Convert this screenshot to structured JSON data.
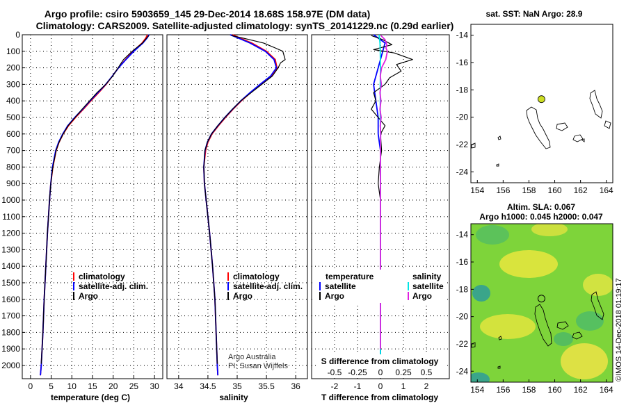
{
  "title_line1": "Argo profile: csiro 5903659_145 29-Dec-2014 18.68S 158.97E (DM data)",
  "title_line2": "Climatology: CARS2009. Satellite-adjusted climatology: synTS_20141229.nc (0.29d earlier)",
  "credit": "©IMOS 14-Dec-2018 01:19:17",
  "colors": {
    "climatology": "#ff0000",
    "satellite": "#0000ff",
    "argo": "#000000",
    "sat_salinity": "#00e5e5",
    "argo_salinity": "#e020e0",
    "float_marker": "#ccdd22"
  },
  "chart_data": [
    {
      "id": "temperature",
      "type": "line",
      "xlabel": "temperature (deg C)",
      "ylabel": "",
      "xlim": [
        -2,
        32
      ],
      "ylim": [
        0,
        2080
      ],
      "xticks": [
        0,
        5,
        10,
        15,
        20,
        25,
        30
      ],
      "yticks": [
        0,
        100,
        200,
        300,
        400,
        500,
        600,
        700,
        800,
        900,
        1000,
        1100,
        1200,
        1300,
        1400,
        1500,
        1600,
        1700,
        1800,
        1900,
        2000
      ],
      "legend": [
        "climatology",
        "satellite-adj. clim.",
        "Argo"
      ],
      "series": [
        {
          "name": "climatology",
          "color": "#ff0000",
          "depth": [
            0,
            20,
            50,
            100,
            150,
            200,
            250,
            300,
            350,
            400,
            450,
            500,
            550,
            600,
            650,
            700,
            800,
            900,
            1000,
            1200,
            1400,
            1600,
            1800,
            2000,
            2060
          ],
          "values": [
            28.3,
            27.9,
            27.0,
            24.8,
            23.0,
            21.3,
            19.8,
            18.3,
            16.5,
            14.6,
            12.8,
            10.9,
            9.2,
            7.9,
            6.9,
            6.2,
            5.4,
            4.9,
            4.6,
            4.1,
            3.7,
            3.3,
            3.0,
            2.6,
            2.4
          ]
        },
        {
          "name": "satellite-adj. clim.",
          "color": "#0000ff",
          "depth": [
            0,
            20,
            50,
            100,
            150,
            200,
            250,
            300,
            350,
            400,
            450,
            500,
            550,
            600,
            650,
            700,
            800,
            900,
            1000,
            1200,
            1400,
            1600,
            1800,
            2000,
            2060
          ],
          "values": [
            28.7,
            28.2,
            27.2,
            25.0,
            23.1,
            21.3,
            19.8,
            18.2,
            16.3,
            14.4,
            12.6,
            10.7,
            9.0,
            7.8,
            6.8,
            6.1,
            5.3,
            4.9,
            4.6,
            4.1,
            3.7,
            3.3,
            3.0,
            2.6,
            2.4
          ]
        },
        {
          "name": "Argo",
          "color": "#000000",
          "depth": [
            5,
            20,
            50,
            100,
            150,
            200,
            250,
            300,
            350,
            400,
            450,
            500,
            550,
            600,
            650,
            700,
            800,
            900,
            1000,
            1200,
            1400,
            1600,
            1800,
            1990
          ],
          "values": [
            28.6,
            28.1,
            27.1,
            24.6,
            22.5,
            21.2,
            19.9,
            18.2,
            16.1,
            14.3,
            12.5,
            10.8,
            9.1,
            7.9,
            6.9,
            6.2,
            5.4,
            4.9,
            4.6,
            4.1,
            3.7,
            3.3,
            3.0,
            2.6
          ]
        }
      ]
    },
    {
      "id": "salinity",
      "type": "line",
      "xlabel": "salinity",
      "ylabel": "",
      "xlim": [
        33.8,
        36.2
      ],
      "ylim": [
        0,
        2080
      ],
      "xticks": [
        34,
        34.5,
        35,
        35.5,
        36
      ],
      "legend": [
        "climatology",
        "satellite-adj. clim.",
        "Argo"
      ],
      "annotation": [
        "Argo Australia",
        "PI: Susan Wijffels"
      ],
      "series": [
        {
          "name": "climatology",
          "color": "#ff0000",
          "depth": [
            0,
            20,
            50,
            100,
            150,
            200,
            250,
            300,
            350,
            400,
            450,
            500,
            550,
            600,
            650,
            700,
            800,
            900,
            1000,
            1200,
            1400,
            1600,
            1800,
            2000,
            2060
          ],
          "values": [
            34.92,
            35.05,
            35.25,
            35.5,
            35.65,
            35.68,
            35.58,
            35.4,
            35.23,
            35.07,
            34.93,
            34.8,
            34.68,
            34.57,
            34.5,
            34.46,
            34.43,
            34.44,
            34.47,
            34.53,
            34.58,
            34.62,
            34.64,
            34.66,
            34.67
          ]
        },
        {
          "name": "satellite-adj. clim.",
          "color": "#0000ff",
          "depth": [
            0,
            20,
            50,
            100,
            150,
            200,
            250,
            300,
            350,
            400,
            450,
            500,
            550,
            600,
            650,
            700,
            800,
            900,
            1000,
            1200,
            1400,
            1600,
            1800,
            2000,
            2060
          ],
          "values": [
            34.88,
            35.02,
            35.22,
            35.48,
            35.63,
            35.67,
            35.57,
            35.39,
            35.22,
            35.06,
            34.92,
            34.79,
            34.67,
            34.56,
            34.49,
            34.45,
            34.43,
            34.44,
            34.47,
            34.53,
            34.58,
            34.62,
            34.64,
            34.66,
            34.67
          ]
        },
        {
          "name": "Argo",
          "color": "#000000",
          "depth": [
            5,
            20,
            50,
            80,
            100,
            150,
            170,
            200,
            250,
            300,
            350,
            400,
            450,
            500,
            550,
            600,
            650,
            700,
            800,
            900,
            1000,
            1200,
            1400,
            1600,
            1800,
            1990
          ],
          "values": [
            34.9,
            35.1,
            35.45,
            35.65,
            35.78,
            35.82,
            35.74,
            35.7,
            35.6,
            35.42,
            35.24,
            35.06,
            34.92,
            34.79,
            34.67,
            34.56,
            34.49,
            34.45,
            34.43,
            34.44,
            34.47,
            34.53,
            34.58,
            34.62,
            34.64,
            34.66
          ]
        }
      ]
    },
    {
      "id": "difference",
      "type": "line",
      "xlabel": "T difference from climatology",
      "xlabel2": "S difference from climatology",
      "xlim": [
        -3,
        3
      ],
      "ylim": [
        0,
        2080
      ],
      "xticks": [
        -2,
        -1,
        0,
        1,
        2
      ],
      "xticks_top": [
        -0.5,
        -0.25,
        0,
        0.25,
        0.5
      ],
      "legend_left_title": "temperature",
      "legend_right_title": "salinity",
      "legend": [
        "satellite",
        "Argo",
        "satellite",
        "Argo"
      ],
      "series": [
        {
          "name": "T satellite",
          "color": "#0000ff",
          "depth": [
            0,
            50,
            100,
            200,
            300,
            400,
            500,
            600,
            700,
            800,
            1000,
            1500,
            2000
          ],
          "values": [
            -0.3,
            0.2,
            0.1,
            -0.1,
            -0.3,
            -0.2,
            -0.1,
            -0.1,
            0.0,
            0.0,
            0.0,
            0.0,
            0.0
          ]
        },
        {
          "name": "T Argo",
          "color": "#000000",
          "depth": [
            5,
            30,
            60,
            90,
            110,
            150,
            180,
            220,
            260,
            300,
            350,
            400,
            450,
            500,
            550,
            600,
            700,
            800,
            900,
            1000,
            1200,
            1500,
            2000
          ],
          "values": [
            -0.4,
            0.1,
            0.5,
            -0.3,
            0.6,
            1.4,
            0.7,
            0.9,
            0.4,
            0.2,
            -0.3,
            -0.2,
            -0.4,
            -0.1,
            0.2,
            0.0,
            0.05,
            -0.05,
            -0.1,
            0.0,
            0.0,
            0.0,
            0.0
          ]
        },
        {
          "name": "S satellite",
          "color": "#00e5e5",
          "depth": [
            0,
            50,
            100,
            200,
            300,
            400,
            500,
            600,
            700,
            800,
            1000,
            1500,
            2000
          ],
          "values": [
            -0.06,
            -0.02,
            -0.01,
            0.0,
            -0.01,
            -0.01,
            -0.01,
            0.0,
            0.0,
            0.0,
            0.0,
            0.0,
            0.0
          ]
        },
        {
          "name": "S Argo",
          "color": "#e020e0",
          "depth": [
            5,
            30,
            60,
            80,
            100,
            150,
            200,
            250,
            300,
            350,
            400,
            450,
            500,
            550,
            600,
            700,
            800,
            900,
            1000,
            1500,
            1900
          ],
          "values": [
            0.02,
            0.2,
            0.28,
            0.24,
            0.3,
            0.23,
            0.05,
            -0.01,
            0.04,
            -0.02,
            0.02,
            -0.02,
            0.03,
            -0.01,
            0.01,
            0.0,
            0.0,
            0.0,
            0.0,
            0.0,
            0.0
          ]
        }
      ]
    },
    {
      "id": "sst_map",
      "type": "map",
      "title": "sat. SST: NaN Argo: 28.9",
      "xticks": [
        154,
        156,
        158,
        160,
        162,
        164
      ],
      "yticks": [
        -14,
        -16,
        -18,
        -20,
        -22,
        -24
      ],
      "xlim": [
        153.5,
        164.5
      ],
      "ylim": [
        -24.8,
        -13.2
      ],
      "float_lon": 158.97,
      "float_lat": -18.68
    },
    {
      "id": "sla_map",
      "type": "map",
      "title": "Altim. SLA: 0.067",
      "subtitle": "Argo h1000: 0.045 h2000: 0.047",
      "xticks": [
        154,
        156,
        158,
        160,
        162,
        164
      ],
      "yticks": [
        -14,
        -16,
        -18,
        -20,
        -22,
        -24
      ],
      "xlim": [
        153.5,
        164.5
      ],
      "ylim": [
        -24.8,
        -13.2
      ],
      "float_lon": 158.97,
      "float_lat": -18.68
    }
  ]
}
